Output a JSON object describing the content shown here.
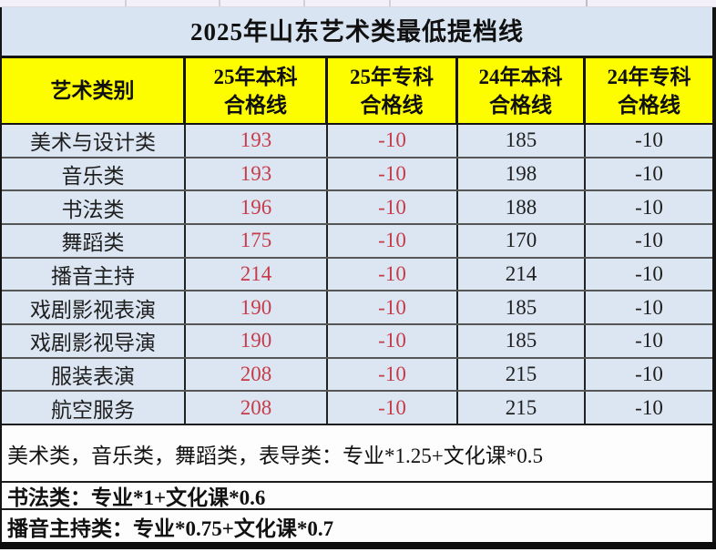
{
  "title": "2025年山东艺术类最低提档线",
  "table": {
    "headers": [
      "艺术类别",
      "25年本科\n合格线",
      "25年专科\n合格线",
      "24年本科\n合格线",
      "24年专科\n合格线"
    ],
    "rows": [
      {
        "category": "美术与设计类",
        "values": [
          "193",
          "-10",
          "185",
          "-10"
        ]
      },
      {
        "category": "音乐类",
        "values": [
          "193",
          "-10",
          "198",
          "-10"
        ]
      },
      {
        "category": "书法类",
        "values": [
          "196",
          "-10",
          "188",
          "-10"
        ]
      },
      {
        "category": "舞蹈类",
        "values": [
          "175",
          "-10",
          "170",
          "-10"
        ]
      },
      {
        "category": "播音主持",
        "values": [
          "214",
          "-10",
          "214",
          "-10"
        ]
      },
      {
        "category": "戏剧影视表演",
        "values": [
          "190",
          "-10",
          "185",
          "-10"
        ]
      },
      {
        "category": "戏剧影视导演",
        "values": [
          "190",
          "-10",
          "185",
          "-10"
        ]
      },
      {
        "category": "服装表演",
        "values": [
          "208",
          "-10",
          "215",
          "-10"
        ]
      },
      {
        "category": "航空服务",
        "values": [
          "208",
          "-10",
          "215",
          "-10"
        ]
      }
    ]
  },
  "notes": [
    "美术类，音乐类，舞蹈类，表导类：专业*1.25+文化课*0.5",
    "书法类：专业*1+文化课*0.6",
    "播音主持类：专业*0.75+文化课*0.7"
  ],
  "colors": {
    "header_bg": "#fdfd00",
    "row_bg": "#dce6f2",
    "title_bg": "#d8e4f1",
    "highlight_red": "#c53b49"
  },
  "chart_data": {
    "type": "table",
    "title": "2025年山东艺术类最低提档线",
    "columns": [
      "艺术类别",
      "25年本科合格线",
      "25年专科合格线",
      "24年本科合格线",
      "24年专科合格线"
    ],
    "rows": [
      [
        "美术与设计类",
        193,
        -10,
        185,
        -10
      ],
      [
        "音乐类",
        193,
        -10,
        198,
        -10
      ],
      [
        "书法类",
        196,
        -10,
        188,
        -10
      ],
      [
        "舞蹈类",
        175,
        -10,
        170,
        -10
      ],
      [
        "播音主持",
        214,
        -10,
        214,
        -10
      ],
      [
        "戏剧影视表演",
        190,
        -10,
        185,
        -10
      ],
      [
        "戏剧影视导演",
        190,
        -10,
        185,
        -10
      ],
      [
        "服装表演",
        208,
        -10,
        215,
        -10
      ],
      [
        "航空服务",
        208,
        -10,
        215,
        -10
      ]
    ],
    "annotations": [
      "美术类，音乐类，舞蹈类，表导类：专业*1.25+文化课*0.5",
      "书法类：专业*1+文化课*0.6",
      "播音主持类：专业*0.75+文化课*0.7"
    ],
    "layout_hints": {
      "header_background": "#fdfd00",
      "body_background": "#dce6f2",
      "red_columns": [
        1,
        2
      ]
    }
  }
}
